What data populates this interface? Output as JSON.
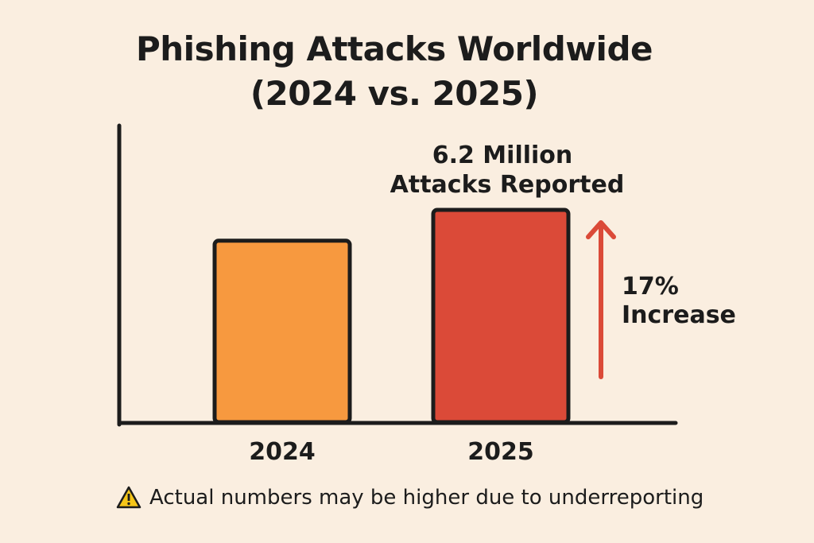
{
  "title_line_1": "Phishing Attacks Worldwide",
  "title_line_2": "(2024 vs. 2025)",
  "footnote": {
    "icon": "warning-icon",
    "text": "Actual numbers may be higher due to underreporting"
  },
  "chart_data": {
    "type": "bar",
    "title": "Phishing Attacks Worldwide (2024 vs. 2025)",
    "categories": [
      "2024",
      "2025"
    ],
    "values": [
      5.3,
      6.2
    ],
    "unit": "Million attacks",
    "xlabel": "",
    "ylabel": "",
    "ylim": [
      0,
      7.2
    ],
    "grid": false,
    "axis_ticks_shown": false,
    "colors": [
      "#f7993f",
      "#db4a38"
    ],
    "annotations": {
      "value_label_line_1": "6.2 Million",
      "value_label_line_2": "Attacks Reported",
      "increase_line_1": "17%",
      "increase_line_2": "Increase",
      "arrow_color": "#db4a38"
    }
  }
}
